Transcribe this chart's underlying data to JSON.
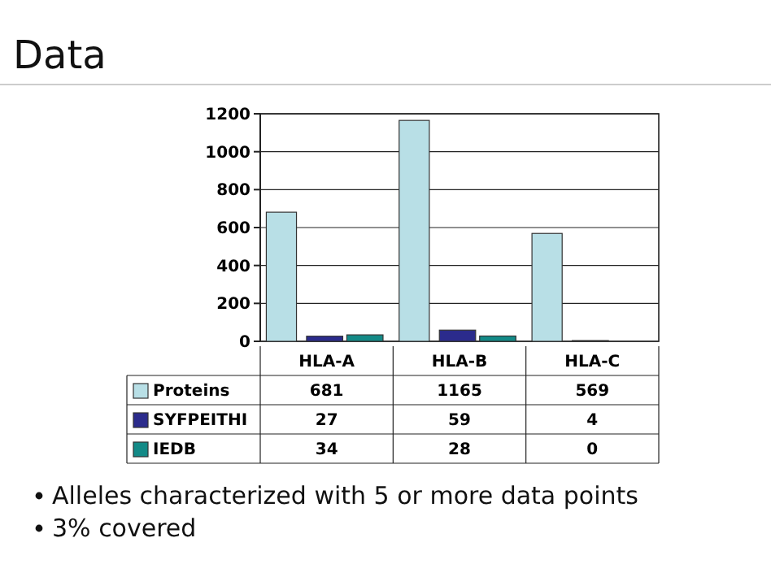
{
  "chart_data": {
    "type": "bar",
    "title": "Data",
    "categories": [
      "HLA-A",
      "HLA-B",
      "HLA-C"
    ],
    "series": [
      {
        "name": "Proteins",
        "color": "#b8dfe6",
        "values": [
          681,
          1165,
          569
        ]
      },
      {
        "name": "SYFPEITHI",
        "color": "#2b2b8c",
        "values": [
          27,
          59,
          4
        ]
      },
      {
        "name": "IEDB",
        "color": "#138a87",
        "values": [
          34,
          28,
          0
        ]
      }
    ],
    "ylim": [
      0,
      1200
    ],
    "yticks": [
      0,
      200,
      400,
      600,
      800,
      1000,
      1200
    ],
    "grid": "y",
    "legend": "bottom",
    "data_labels": true,
    "annotations": [
      "Alleles characterized with 5 or more data points",
      "3% covered"
    ]
  }
}
